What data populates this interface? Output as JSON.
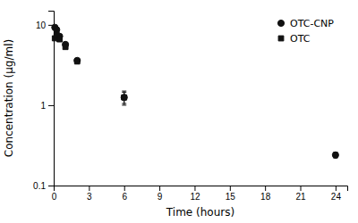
{
  "chart_data": {
    "type": "scatter",
    "title": "",
    "xlabel": "Time (hours)",
    "ylabel": "Concentration (μg/ml)",
    "xlim": [
      0,
      25
    ],
    "xticks": [
      0,
      3,
      6,
      9,
      12,
      15,
      18,
      21,
      24
    ],
    "ylim": [
      0.1,
      15
    ],
    "yticks": [
      0.1,
      1,
      10
    ],
    "log": "y",
    "grid": false,
    "legend": "upper right",
    "series": [
      {
        "name": "OTC-CNP",
        "color": "#111111",
        "marker": "circle",
        "x": [
          0.1,
          0.25,
          0.5,
          1.0,
          2.0,
          6.0,
          24.0
        ],
        "values": [
          9.3,
          8.7,
          7.2,
          5.7,
          3.6,
          1.25,
          0.24
        ],
        "errors": [
          0.3,
          0.25,
          0.2,
          0.22,
          0.18,
          0.25,
          0.02
        ]
      },
      {
        "name": "OTC",
        "color": "#111111",
        "marker": "square",
        "x": [
          0.1,
          0.25,
          0.5,
          1.0,
          2.0,
          6.0
        ],
        "values": [
          6.8,
          7.5,
          6.6,
          5.3,
          3.5,
          1.25
        ],
        "errors": [
          0.25,
          0.2,
          0.2,
          0.18,
          0.15,
          0.2
        ]
      }
    ]
  }
}
